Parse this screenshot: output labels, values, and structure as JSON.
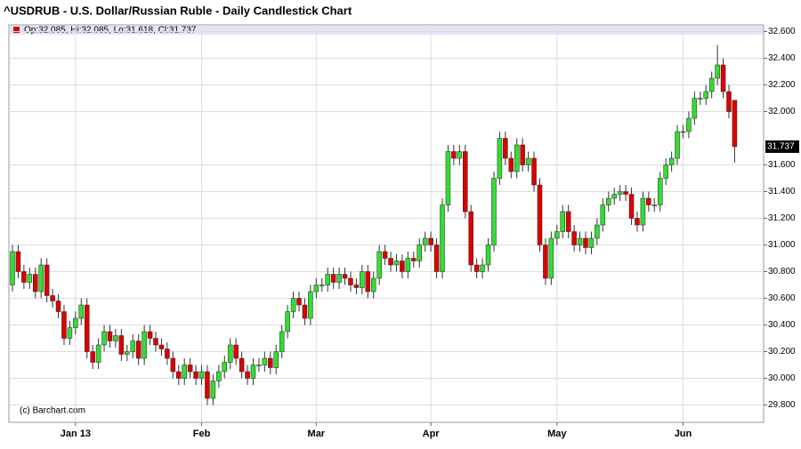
{
  "chart_data": {
    "type": "candlestick",
    "title": "^USDRUB - U.S. Dollar/Russian Ruble - Daily Candlestick Chart",
    "legend": "Op:32.085, Hi:32.085, Lo:31.618, Cl:31.737",
    "credit": "(c) Barchart.com",
    "up_color": "#33dd33",
    "down_color": "#dd0000",
    "grid": true,
    "ylim": [
      29.67,
      32.65
    ],
    "yticks": [
      {
        "value": 29.8,
        "label": "29.800"
      },
      {
        "value": 30.0,
        "label": "30.000"
      },
      {
        "value": 30.2,
        "label": "30.200"
      },
      {
        "value": 30.4,
        "label": "30.400"
      },
      {
        "value": 30.6,
        "label": "30.600"
      },
      {
        "value": 30.8,
        "label": "30.800"
      },
      {
        "value": 31.0,
        "label": "31.000"
      },
      {
        "value": 31.2,
        "label": "31.200"
      },
      {
        "value": 31.4,
        "label": "31.400"
      },
      {
        "value": 31.6,
        "label": "31.600"
      },
      {
        "value": 32.0,
        "label": "32.000"
      },
      {
        "value": 32.2,
        "label": "32.200"
      },
      {
        "value": 32.4,
        "label": "32.400"
      },
      {
        "value": 32.6,
        "label": "32.600"
      }
    ],
    "xticks": [
      {
        "value": 11,
        "label": "Jan 13"
      },
      {
        "value": 33,
        "label": "Feb"
      },
      {
        "value": 53,
        "label": "Mar"
      },
      {
        "value": 73,
        "label": "Apr"
      },
      {
        "value": 95,
        "label": "May"
      },
      {
        "value": 117,
        "label": "Jun"
      }
    ],
    "candles": {
      "open": [
        30.7,
        30.95,
        30.8,
        30.72,
        30.78,
        30.65,
        30.85,
        30.62,
        30.58,
        30.5,
        30.3,
        30.38,
        30.45,
        30.55,
        30.2,
        30.12,
        30.25,
        30.35,
        30.28,
        30.32,
        30.18,
        30.2,
        30.28,
        30.15,
        30.35,
        30.3,
        30.25,
        30.22,
        30.15,
        30.05,
        30.0,
        30.1,
        30.05,
        30.0,
        30.05,
        29.85,
        29.98,
        30.05,
        30.12,
        30.25,
        30.15,
        30.05,
        30.0,
        30.1,
        30.1,
        30.15,
        30.08,
        30.2,
        30.35,
        30.5,
        30.6,
        30.55,
        30.45,
        30.65,
        30.7,
        30.7,
        30.78,
        30.72,
        30.78,
        30.75,
        30.7,
        30.68,
        30.8,
        30.65,
        30.75,
        30.95,
        30.9,
        30.85,
        30.88,
        30.8,
        30.9,
        30.88,
        31.0,
        31.05,
        31.0,
        30.8,
        31.3,
        31.7,
        31.65,
        31.7,
        31.25,
        30.85,
        30.8,
        30.85,
        31.0,
        31.5,
        31.8,
        31.65,
        31.55,
        31.75,
        31.6,
        31.65,
        31.45,
        31.0,
        30.75,
        31.05,
        31.1,
        31.25,
        31.1,
        31.0,
        31.05,
        30.98,
        31.05,
        31.15,
        31.3,
        31.35,
        31.38,
        31.4,
        31.38,
        31.2,
        31.15,
        31.35,
        31.3,
        31.3,
        31.5,
        31.6,
        31.65,
        31.85,
        31.85,
        31.95,
        32.1,
        32.1,
        32.15,
        32.25,
        32.35,
        32.15,
        32.085
      ],
      "high": [
        31.0,
        31.0,
        30.85,
        30.83,
        30.83,
        30.9,
        30.9,
        30.67,
        30.63,
        30.55,
        30.43,
        30.5,
        30.6,
        30.6,
        30.25,
        30.3,
        30.4,
        30.4,
        30.37,
        30.37,
        30.25,
        30.33,
        30.33,
        30.4,
        30.4,
        30.35,
        30.3,
        30.27,
        30.2,
        30.1,
        30.15,
        30.15,
        30.1,
        30.1,
        30.1,
        30.03,
        30.1,
        30.17,
        30.3,
        30.3,
        30.2,
        30.1,
        30.15,
        30.15,
        30.2,
        30.2,
        30.25,
        30.4,
        30.55,
        30.65,
        30.65,
        30.6,
        30.7,
        30.75,
        30.75,
        30.83,
        30.83,
        30.83,
        30.83,
        30.8,
        30.75,
        30.85,
        30.85,
        30.8,
        31.0,
        31.0,
        30.95,
        30.93,
        30.93,
        30.95,
        30.95,
        31.05,
        31.1,
        31.1,
        31.05,
        31.35,
        31.75,
        31.75,
        31.75,
        31.75,
        31.3,
        30.9,
        30.9,
        31.05,
        31.55,
        31.85,
        31.85,
        31.7,
        31.8,
        31.8,
        31.7,
        31.7,
        31.5,
        31.05,
        31.1,
        31.15,
        31.3,
        31.3,
        31.15,
        31.1,
        31.1,
        31.1,
        31.2,
        31.35,
        31.4,
        31.43,
        31.45,
        31.45,
        31.43,
        31.25,
        31.4,
        31.4,
        31.35,
        31.55,
        31.65,
        31.7,
        31.9,
        31.9,
        32.0,
        32.15,
        32.15,
        32.2,
        32.3,
        32.5,
        32.4,
        32.2,
        32.085
      ],
      "low": [
        30.65,
        30.75,
        30.67,
        30.67,
        30.6,
        30.6,
        30.57,
        30.53,
        30.45,
        30.25,
        30.25,
        30.33,
        30.4,
        30.15,
        30.07,
        30.07,
        30.2,
        30.23,
        30.23,
        30.13,
        30.13,
        30.15,
        30.1,
        30.1,
        30.25,
        30.2,
        30.17,
        30.1,
        30.0,
        29.95,
        29.95,
        30.0,
        29.95,
        29.95,
        29.8,
        29.8,
        29.93,
        30.0,
        30.07,
        30.1,
        30.0,
        29.95,
        29.95,
        30.05,
        30.05,
        30.03,
        30.03,
        30.15,
        30.3,
        30.45,
        30.5,
        30.4,
        30.4,
        30.6,
        30.65,
        30.65,
        30.67,
        30.67,
        30.7,
        30.65,
        30.63,
        30.63,
        30.6,
        30.6,
        30.7,
        30.85,
        30.8,
        30.8,
        30.75,
        30.75,
        30.83,
        30.83,
        30.95,
        30.95,
        30.75,
        30.75,
        31.25,
        31.6,
        31.6,
        31.2,
        30.8,
        30.75,
        30.75,
        30.8,
        30.95,
        31.45,
        31.6,
        31.5,
        31.5,
        31.55,
        31.55,
        31.4,
        30.95,
        30.7,
        30.7,
        31.0,
        31.05,
        31.05,
        30.95,
        30.95,
        30.93,
        30.93,
        31.0,
        31.1,
        31.25,
        31.3,
        31.33,
        31.33,
        31.15,
        31.1,
        31.1,
        31.25,
        31.25,
        31.25,
        31.45,
        31.55,
        31.6,
        31.8,
        31.8,
        31.9,
        32.05,
        32.05,
        32.1,
        32.2,
        32.1,
        31.95,
        31.618
      ],
      "close": [
        30.95,
        30.8,
        30.72,
        30.78,
        30.65,
        30.85,
        30.62,
        30.58,
        30.5,
        30.3,
        30.38,
        30.45,
        30.55,
        30.2,
        30.12,
        30.25,
        30.35,
        30.28,
        30.32,
        30.18,
        30.2,
        30.28,
        30.15,
        30.35,
        30.3,
        30.25,
        30.22,
        30.15,
        30.05,
        30.0,
        30.1,
        30.05,
        30.0,
        30.05,
        29.85,
        29.98,
        30.05,
        30.12,
        30.25,
        30.15,
        30.05,
        30.0,
        30.1,
        30.1,
        30.15,
        30.08,
        30.2,
        30.35,
        30.5,
        30.6,
        30.55,
        30.45,
        30.65,
        30.7,
        30.7,
        30.78,
        30.72,
        30.78,
        30.75,
        30.7,
        30.68,
        30.8,
        30.65,
        30.75,
        30.95,
        30.9,
        30.85,
        30.88,
        30.8,
        30.9,
        30.88,
        31.0,
        31.05,
        31.0,
        30.8,
        31.3,
        31.7,
        31.65,
        31.7,
        31.25,
        30.85,
        30.8,
        30.85,
        31.0,
        31.5,
        31.8,
        31.65,
        31.55,
        31.75,
        31.6,
        31.65,
        31.45,
        31.0,
        30.75,
        31.05,
        31.1,
        31.25,
        31.1,
        31.0,
        31.05,
        30.98,
        31.05,
        31.15,
        31.3,
        31.35,
        31.38,
        31.4,
        31.38,
        31.2,
        31.15,
        31.35,
        31.3,
        31.3,
        31.5,
        31.6,
        31.65,
        31.85,
        31.85,
        31.95,
        32.1,
        32.1,
        32.15,
        32.25,
        32.35,
        32.15,
        32.0,
        31.737
      ]
    }
  }
}
